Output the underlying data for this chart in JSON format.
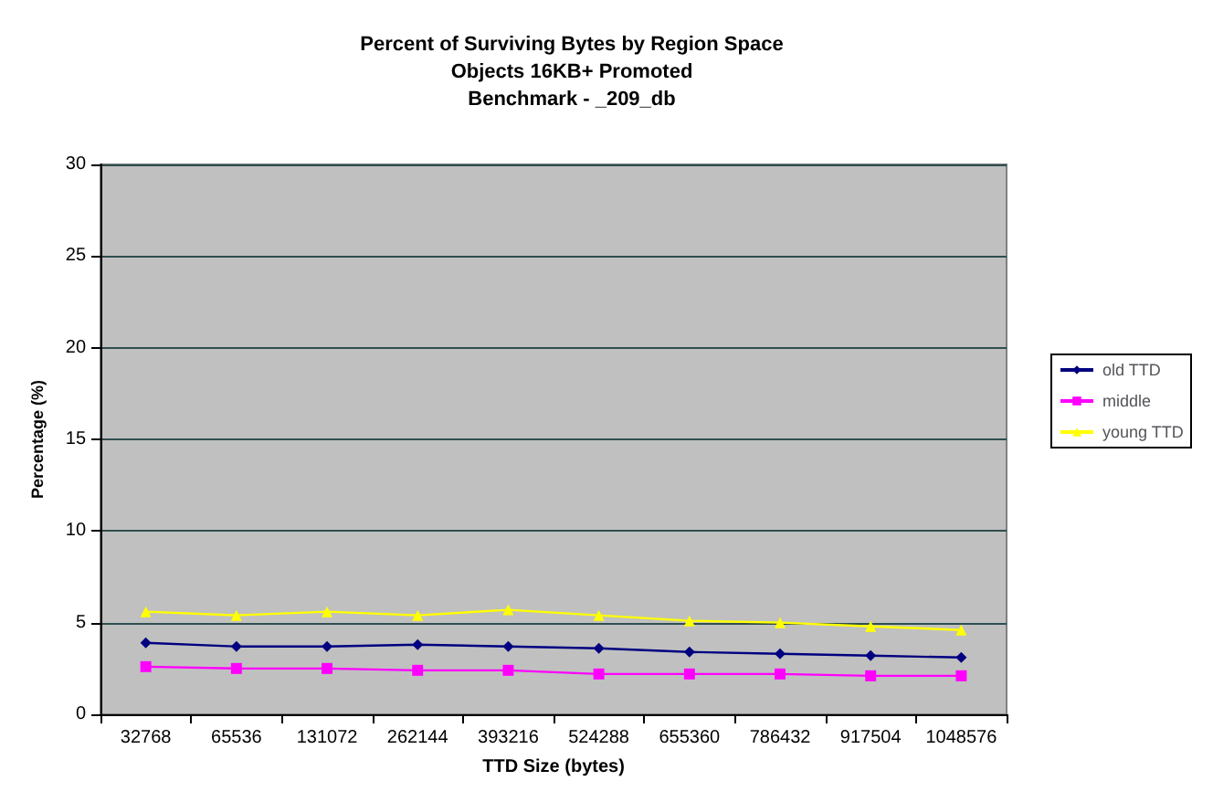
{
  "chart_data": {
    "type": "line",
    "title": "Percent of Surviving Bytes by Region Space\nObjects 16KB+ Promoted\nBenchmark - _209_db",
    "xlabel": "TTD Size (bytes)",
    "ylabel": "Percentage (%)",
    "categories": [
      "32768",
      "65536",
      "131072",
      "262144",
      "393216",
      "524288",
      "655360",
      "786432",
      "917504",
      "1048576"
    ],
    "series": [
      {
        "name": "old TTD",
        "color": "#000080",
        "marker": "diamond",
        "values": [
          3.9,
          3.7,
          3.7,
          3.8,
          3.7,
          3.6,
          3.4,
          3.3,
          3.2,
          3.1
        ]
      },
      {
        "name": "middle",
        "color": "#ff00ff",
        "marker": "square",
        "values": [
          2.6,
          2.5,
          2.5,
          2.4,
          2.4,
          2.2,
          2.2,
          2.2,
          2.1,
          2.1
        ]
      },
      {
        "name": "young TTD",
        "color": "#ffff00",
        "marker": "triangle",
        "values": [
          5.6,
          5.4,
          5.6,
          5.4,
          5.7,
          5.4,
          5.1,
          5.0,
          4.8,
          4.6
        ]
      }
    ],
    "ylim": [
      0,
      30
    ],
    "yticks": [
      0,
      5,
      10,
      15,
      20,
      25,
      30
    ],
    "grid": "y",
    "legend": "right",
    "line_style": "solid"
  }
}
